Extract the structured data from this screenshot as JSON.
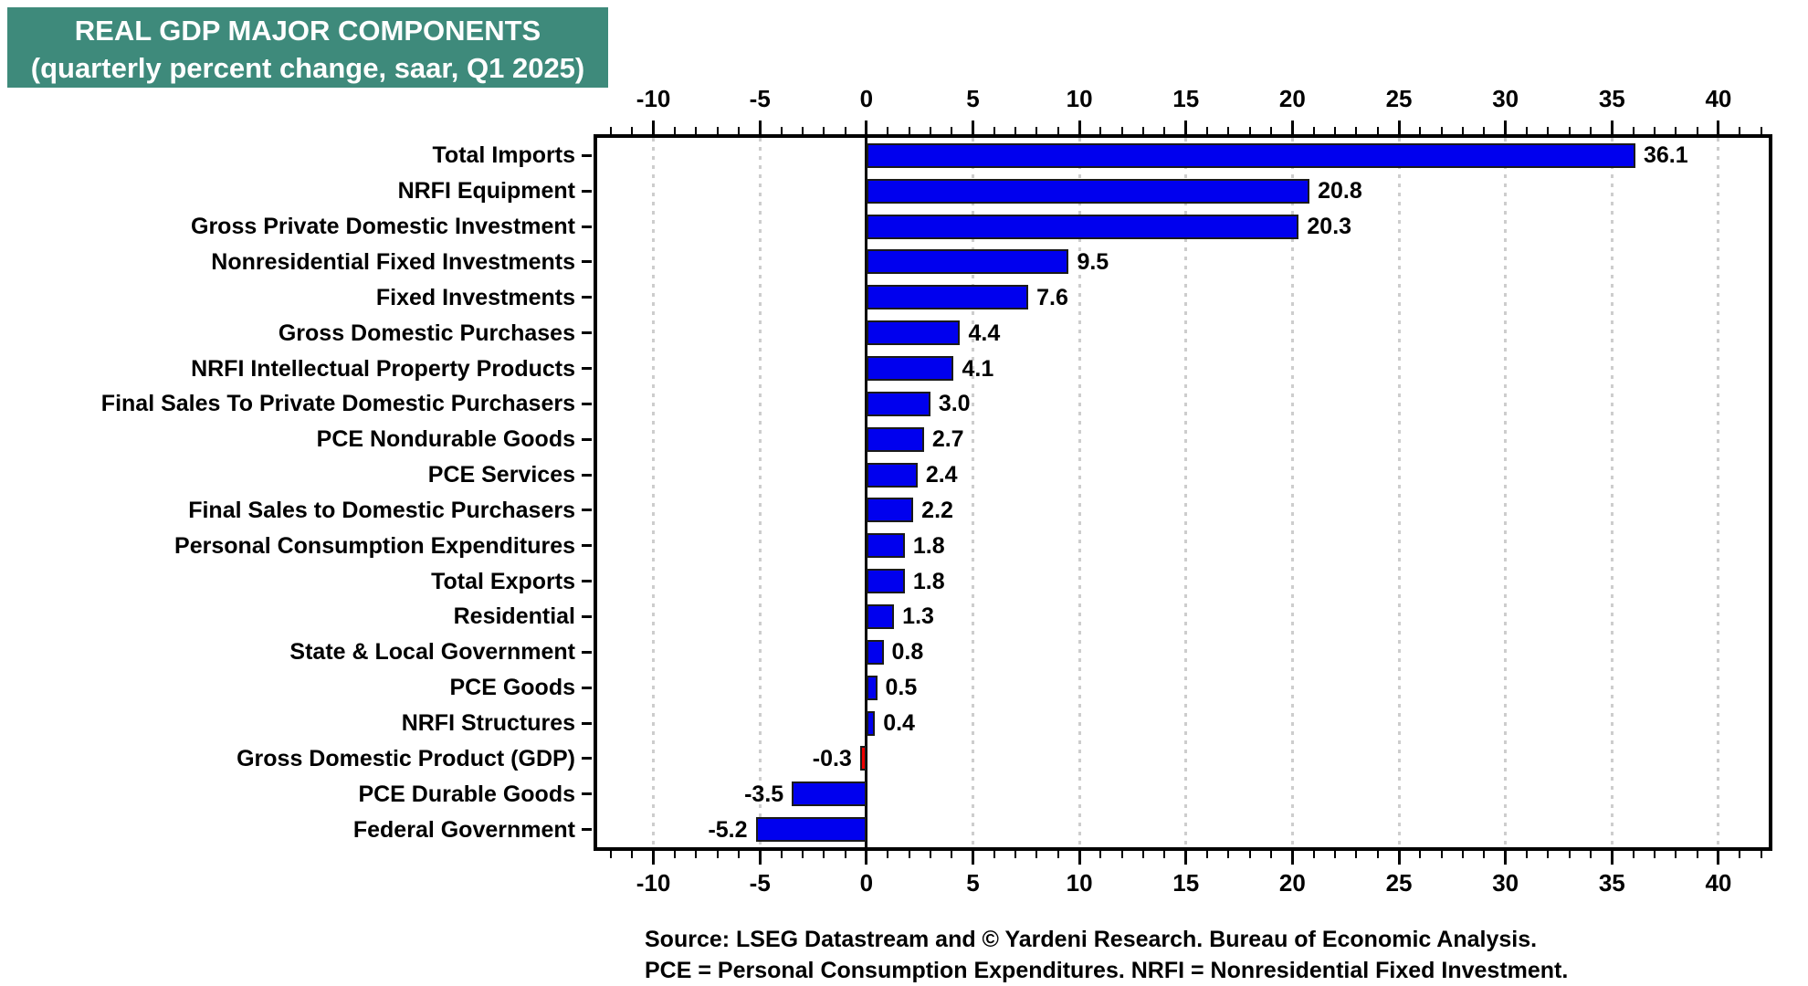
{
  "title": {
    "line1": "REAL GDP MAJOR COMPONENTS",
    "line2": "(quarterly percent change, saar, Q1 2025)"
  },
  "footer": {
    "line1": "Source: LSEG Datastream and © Yardeni Research. Bureau of Economic Analysis.",
    "line2": "PCE = Personal Consumption Expenditures. NRFI = Nonresidential Fixed Investment."
  },
  "colors": {
    "title_bg": "#3E8A7B",
    "title_text": "#FFFFFF",
    "bar_blue": "#0000EE",
    "bar_red": "#EE0000",
    "bar_border": "#1A1A1A",
    "gridline": "#CDCDCD",
    "axis": "#000000"
  },
  "chart_data": {
    "type": "bar",
    "orientation": "horizontal",
    "title": "REAL GDP MAJOR COMPONENTS",
    "subtitle": "(quarterly percent change, saar, Q1 2025)",
    "xlabel": "",
    "ylabel": "",
    "xlim": [
      -12.64,
      42.36
    ],
    "x_major_ticks": [
      -10,
      -5,
      0,
      5,
      10,
      15,
      20,
      25,
      30,
      35,
      40
    ],
    "x_minor_tick_step": 1,
    "grid": "vertical dotted at major ticks, solid black line at zero",
    "legend": "none",
    "items": [
      {
        "label": "Total Imports",
        "value": 36.1,
        "display": "36.1"
      },
      {
        "label": "NRFI Equipment",
        "value": 20.8,
        "display": "20.8"
      },
      {
        "label": "Gross Private Domestic Investment",
        "value": 20.3,
        "display": "20.3"
      },
      {
        "label": "Nonresidential Fixed Investments",
        "value": 9.5,
        "display": "9.5"
      },
      {
        "label": "Fixed Investments",
        "value": 7.6,
        "display": "7.6"
      },
      {
        "label": "Gross Domestic Purchases",
        "value": 4.4,
        "display": "4.4"
      },
      {
        "label": "NRFI Intellectual Property Products",
        "value": 4.1,
        "display": "4.1"
      },
      {
        "label": "Final Sales To Private Domestic Purchasers",
        "value": 3.0,
        "display": "3.0"
      },
      {
        "label": "PCE Nondurable Goods",
        "value": 2.7,
        "display": "2.7"
      },
      {
        "label": "PCE Services",
        "value": 2.4,
        "display": "2.4"
      },
      {
        "label": "Final Sales to Domestic Purchasers",
        "value": 2.2,
        "display": "2.2"
      },
      {
        "label": "Personal Consumption Expenditures",
        "value": 1.8,
        "display": "1.8"
      },
      {
        "label": "Total Exports",
        "value": 1.8,
        "display": "1.8"
      },
      {
        "label": "Residential",
        "value": 1.3,
        "display": "1.3"
      },
      {
        "label": "State & Local Government",
        "value": 0.8,
        "display": "0.8"
      },
      {
        "label": "PCE Goods",
        "value": 0.5,
        "display": "0.5"
      },
      {
        "label": "NRFI Structures",
        "value": 0.4,
        "display": "0.4"
      },
      {
        "label": "Gross Domestic Product (GDP)",
        "value": -0.3,
        "display": "-0.3",
        "highlight": true
      },
      {
        "label": "PCE Durable Goods",
        "value": -3.5,
        "display": "-3.5"
      },
      {
        "label": "Federal Government",
        "value": -5.2,
        "display": "-5.2"
      }
    ]
  }
}
